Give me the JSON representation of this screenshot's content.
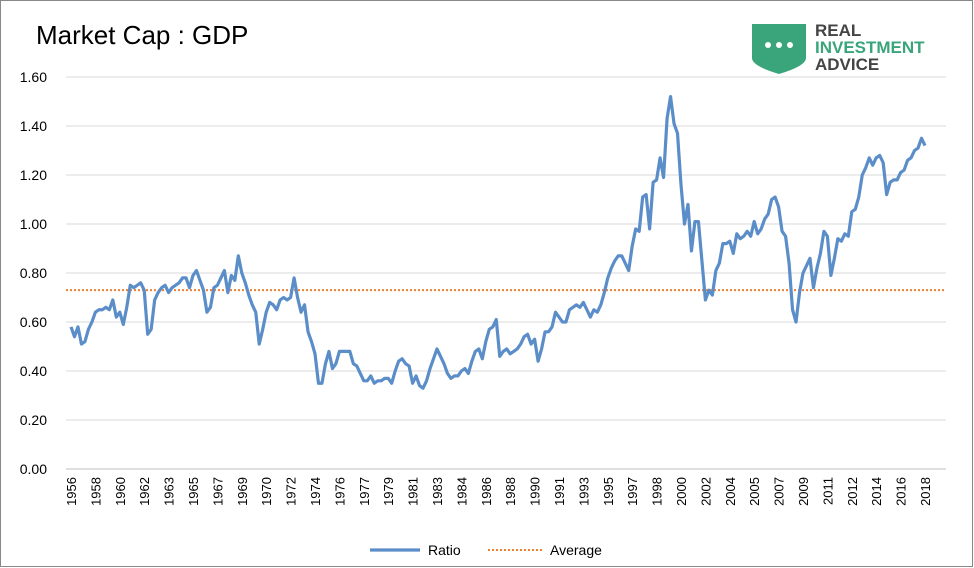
{
  "chart_data": {
    "type": "line",
    "title": "Market Cap : GDP",
    "logo": {
      "line1": "REAL",
      "line2": "INVESTMENT",
      "line3": "ADVICE"
    },
    "categories": [
      "1956",
      null,
      null,
      null,
      null,
      null,
      null,
      "1958",
      null,
      null,
      null,
      null,
      null,
      null,
      "1960",
      null,
      null,
      null,
      null,
      null,
      null,
      "1962",
      null,
      null,
      null,
      null,
      null,
      null,
      "1963",
      null,
      null,
      null,
      null,
      null,
      null,
      "1965",
      null,
      null,
      null,
      null,
      null,
      null,
      "1967",
      null,
      null,
      null,
      null,
      null,
      null,
      "1969",
      null,
      null,
      null,
      null,
      null,
      null,
      "1970",
      null,
      null,
      null,
      null,
      null,
      null,
      "1972",
      null,
      null,
      null,
      null,
      null,
      null,
      "1974",
      null,
      null,
      null,
      null,
      null,
      null,
      "1976",
      null,
      null,
      null,
      null,
      null,
      null,
      "1977",
      null,
      null,
      null,
      null,
      null,
      null,
      "1979",
      null,
      null,
      null,
      null,
      null,
      null,
      "1981",
      null,
      null,
      null,
      null,
      null,
      null,
      "1983",
      null,
      null,
      null,
      null,
      null,
      null,
      "1984",
      null,
      null,
      null,
      null,
      null,
      null,
      "1986",
      null,
      null,
      null,
      null,
      null,
      null,
      "1988",
      null,
      null,
      null,
      null,
      null,
      null,
      "1990",
      null,
      null,
      null,
      null,
      null,
      null,
      "1991",
      null,
      null,
      null,
      null,
      null,
      null,
      "1993",
      null,
      null,
      null,
      null,
      null,
      null,
      "1995",
      null,
      null,
      null,
      null,
      null,
      null,
      "1997",
      null,
      null,
      null,
      null,
      null,
      null,
      "1998",
      null,
      null,
      null,
      null,
      null,
      null,
      "2000",
      null,
      null,
      null,
      null,
      null,
      null,
      "2002",
      null,
      null,
      null,
      null,
      null,
      null,
      "2004",
      null,
      null,
      null,
      null,
      null,
      null,
      "2005",
      null,
      null,
      null,
      null,
      null,
      null,
      "2007",
      null,
      null,
      null,
      null,
      null,
      null,
      "2009",
      null,
      null,
      null,
      null,
      null,
      null,
      "2011",
      null,
      null,
      null,
      null,
      null,
      null,
      "2012",
      null,
      null,
      null,
      null,
      null,
      null,
      "2014",
      null,
      null,
      null,
      null,
      null,
      null,
      "2016",
      null,
      null,
      null,
      null,
      null,
      null,
      "2018"
    ],
    "series": [
      {
        "name": "Ratio",
        "color": "#5b8ec9",
        "values": [
          0.58,
          0.54,
          0.58,
          0.51,
          0.52,
          0.57,
          0.6,
          0.64,
          0.65,
          0.65,
          0.66,
          0.65,
          0.69,
          0.62,
          0.64,
          0.59,
          0.66,
          0.75,
          0.74,
          0.75,
          0.76,
          0.73,
          0.55,
          0.57,
          0.69,
          0.72,
          0.74,
          0.75,
          0.72,
          0.74,
          0.75,
          0.76,
          0.78,
          0.78,
          0.74,
          0.79,
          0.81,
          0.77,
          0.73,
          0.64,
          0.66,
          0.74,
          0.75,
          0.78,
          0.81,
          0.72,
          0.79,
          0.77,
          0.87,
          0.8,
          0.76,
          0.71,
          0.67,
          0.64,
          0.51,
          0.57,
          0.64,
          0.68,
          0.67,
          0.65,
          0.69,
          0.7,
          0.69,
          0.7,
          0.78,
          0.7,
          0.64,
          0.67,
          0.56,
          0.52,
          0.47,
          0.35,
          0.35,
          0.43,
          0.48,
          0.41,
          0.43,
          0.48,
          0.48,
          0.48,
          0.48,
          0.43,
          0.42,
          0.39,
          0.36,
          0.36,
          0.38,
          0.35,
          0.36,
          0.36,
          0.37,
          0.37,
          0.35,
          0.4,
          0.44,
          0.45,
          0.43,
          0.42,
          0.35,
          0.38,
          0.34,
          0.33,
          0.36,
          0.41,
          0.45,
          0.49,
          0.46,
          0.43,
          0.39,
          0.37,
          0.38,
          0.38,
          0.4,
          0.41,
          0.39,
          0.44,
          0.48,
          0.49,
          0.45,
          0.52,
          0.57,
          0.58,
          0.61,
          0.46,
          0.48,
          0.49,
          0.47,
          0.48,
          0.49,
          0.51,
          0.54,
          0.55,
          0.51,
          0.53,
          0.44,
          0.49,
          0.56,
          0.56,
          0.58,
          0.64,
          0.62,
          0.6,
          0.6,
          0.65,
          0.66,
          0.67,
          0.66,
          0.68,
          0.65,
          0.62,
          0.65,
          0.64,
          0.67,
          0.72,
          0.78,
          0.82,
          0.85,
          0.87,
          0.87,
          0.84,
          0.81,
          0.91,
          0.98,
          0.97,
          1.11,
          1.12,
          0.98,
          1.17,
          1.18,
          1.27,
          1.19,
          1.43,
          1.52,
          1.41,
          1.37,
          1.16,
          1.0,
          1.08,
          0.89,
          1.01,
          1.01,
          0.85,
          0.69,
          0.73,
          0.71,
          0.81,
          0.84,
          0.92,
          0.92,
          0.93,
          0.88,
          0.96,
          0.94,
          0.95,
          0.97,
          0.95,
          1.01,
          0.96,
          0.98,
          1.02,
          1.04,
          1.1,
          1.11,
          1.07,
          0.97,
          0.95,
          0.84,
          0.65,
          0.6,
          0.72,
          0.8,
          0.83,
          0.86,
          0.74,
          0.82,
          0.88,
          0.97,
          0.95,
          0.79,
          0.86,
          0.94,
          0.93,
          0.96,
          0.95,
          1.05,
          1.06,
          1.11,
          1.2,
          1.23,
          1.27,
          1.24,
          1.27,
          1.28,
          1.25,
          1.12,
          1.17,
          1.18,
          1.18,
          1.21,
          1.22,
          1.26,
          1.27,
          1.3,
          1.31,
          1.35,
          1.32
        ]
      }
    ],
    "average": {
      "name": "Average",
      "color": "#ed7d31",
      "value": 0.73
    },
    "ylim": [
      0,
      1.6
    ],
    "yticks": [
      {
        "value": 0,
        "label": "0.00"
      },
      {
        "value": 0.2,
        "label": "0.20"
      },
      {
        "value": 0.4,
        "label": "0.40"
      },
      {
        "value": 0.6,
        "label": "0.60"
      },
      {
        "value": 0.8,
        "label": "0.80"
      },
      {
        "value": 1,
        "label": "1.00"
      },
      {
        "value": 1.2,
        "label": "1.20"
      },
      {
        "value": 1.4,
        "label": "1.40"
      },
      {
        "value": 1.6,
        "label": "1.60"
      }
    ],
    "grid": true
  }
}
